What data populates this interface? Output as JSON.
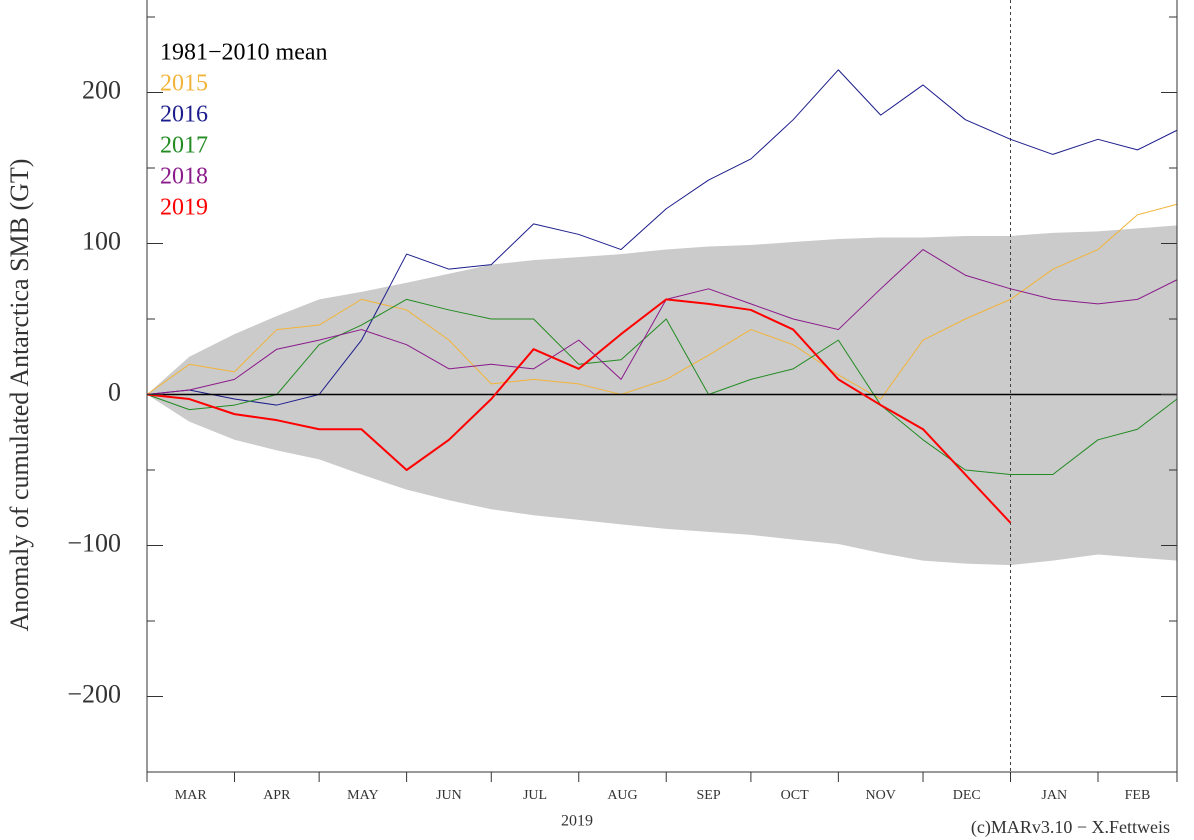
{
  "chart_data": {
    "type": "line",
    "y_label": "Anomaly of cumulated Antarctica SMB (GT)",
    "x_label": "2019",
    "credit": "(c)MARv3.10 − X.Fettweis",
    "months": [
      "MAR",
      "APR",
      "MAY",
      "JUN",
      "JUL",
      "AUG",
      "SEP",
      "OCT",
      "NOV",
      "DEC",
      "JAN",
      "FEB"
    ],
    "xticks": [
      0,
      31,
      61,
      92,
      122,
      153,
      184,
      214,
      245,
      275,
      306,
      337,
      365
    ],
    "year_boundary": 306,
    "xlim": [
      0,
      365
    ],
    "ylim": [
      -250,
      250
    ],
    "yticks": [
      {
        "value": -200,
        "label": "−200"
      },
      {
        "value": -100,
        "label": "−100"
      },
      0,
      100,
      200
    ],
    "yticks_minor": [
      -250,
      -150,
      -50,
      50,
      150,
      250
    ],
    "x": [
      0,
      15,
      31,
      46,
      61,
      76,
      92,
      107,
      122,
      137,
      153,
      168,
      184,
      199,
      214,
      229,
      245,
      260,
      275,
      290,
      306,
      321,
      337,
      351,
      365
    ],
    "band": {
      "color": "#cbcbcb",
      "upper": [
        0,
        25,
        40,
        52,
        63,
        68,
        74,
        80,
        86,
        89,
        91,
        93,
        96,
        98,
        99,
        101,
        103,
        104,
        104,
        105,
        105,
        107,
        108,
        110,
        112
      ],
      "lower": [
        0,
        -18,
        -30,
        -37,
        -43,
        -53,
        -63,
        -70,
        -76,
        -80,
        -83,
        -86,
        -89,
        -91,
        -93,
        -96,
        -99,
        -105,
        -110,
        -112,
        -113,
        -110,
        -106,
        -108,
        -110
      ]
    },
    "series": [
      {
        "name": "1981−2010 mean",
        "color": "#000000",
        "width": 1.5,
        "values": [
          0,
          0,
          0,
          0,
          0,
          0,
          0,
          0,
          0,
          0,
          0,
          0,
          0,
          0,
          0,
          0,
          0,
          0,
          0,
          0,
          0,
          0,
          0,
          0,
          0
        ]
      },
      {
        "name": "2015",
        "color": "#f2b43a",
        "width": 1,
        "values": [
          0,
          20,
          15,
          43,
          46,
          63,
          56,
          36,
          7,
          10,
          7,
          0,
          10,
          26,
          43,
          33,
          13,
          -3,
          36,
          50,
          63,
          83,
          96,
          119,
          126
        ]
      },
      {
        "name": "2016",
        "color": "#1c1c8c",
        "width": 1,
        "values": [
          0,
          3,
          -3,
          -7,
          0,
          36,
          93,
          83,
          86,
          113,
          106,
          96,
          123,
          142,
          156,
          182,
          215,
          185,
          205,
          182,
          169,
          159,
          169,
          162,
          175
        ]
      },
      {
        "name": "2017",
        "color": "#228b22",
        "width": 1,
        "values": [
          0,
          -10,
          -7,
          0,
          33,
          46,
          63,
          56,
          50,
          50,
          20,
          23,
          50,
          0,
          10,
          17,
          36,
          -7,
          -30,
          -50,
          -53,
          -53,
          -30,
          -23,
          -3
        ]
      },
      {
        "name": "2018",
        "color": "#8b1a8b",
        "width": 1,
        "values": [
          0,
          3,
          10,
          30,
          36,
          43,
          33,
          17,
          20,
          17,
          36,
          10,
          63,
          70,
          60,
          50,
          43,
          70,
          96,
          79,
          70,
          63,
          60,
          63,
          76
        ]
      },
      {
        "name": "2019",
        "color": "#ff0000",
        "width": 2,
        "values": [
          0,
          -3,
          -13,
          -17,
          -23,
          -23,
          -50,
          -30,
          -3,
          30,
          17,
          40,
          63,
          60,
          56,
          43,
          10,
          -7,
          -23,
          -53,
          -85,
          null,
          null,
          null,
          null
        ]
      }
    ]
  }
}
